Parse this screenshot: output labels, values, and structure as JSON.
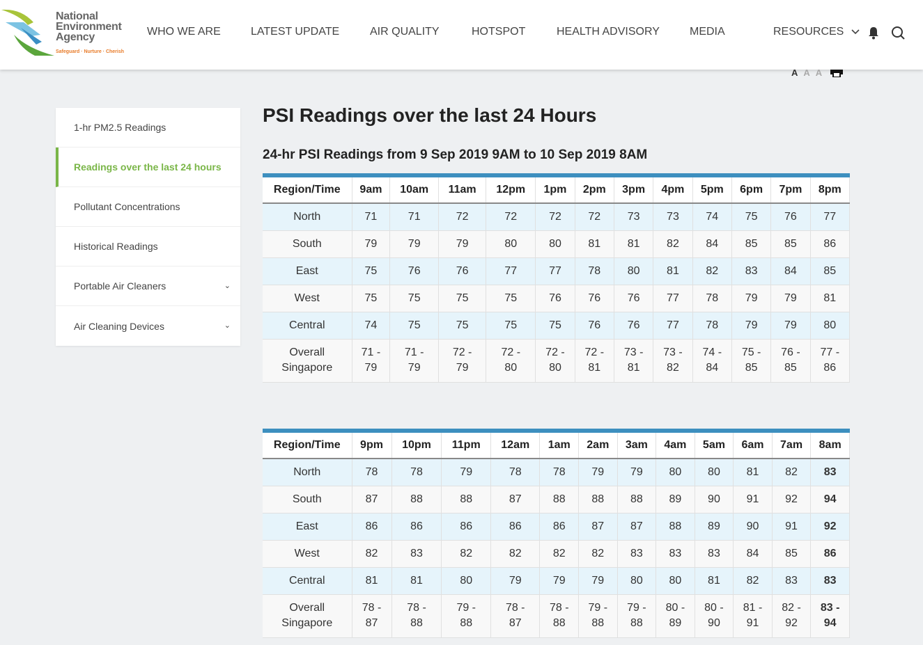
{
  "header": {
    "logo": {
      "line1": "National",
      "line2": "Environment",
      "line3": "Agency",
      "tagline": "Safeguard · Nurture · Cherish"
    },
    "nav": [
      "WHO WE ARE",
      "LATEST UPDATE",
      "AIR QUALITY",
      "HOTSPOT",
      "HEALTH ADVISORY",
      "MEDIA",
      "RESOURCES"
    ],
    "icons": [
      "bell-icon",
      "search-icon"
    ],
    "font_size_options": [
      "A",
      "A",
      "A"
    ]
  },
  "sidebar": {
    "items": [
      {
        "label": "1-hr PM2.5 Readings",
        "active": false
      },
      {
        "label": "Readings over the last 24 hours",
        "active": true
      },
      {
        "label": "Pollutant Concentrations",
        "active": false
      },
      {
        "label": "Historical Readings",
        "active": false
      },
      {
        "label": "Portable Air Cleaners",
        "active": false,
        "expandable": true
      },
      {
        "label": "Air Cleaning Devices",
        "active": false,
        "expandable": true
      }
    ]
  },
  "colors": {
    "accent_green": "#7ab648",
    "table_bar": "#3d8fbf",
    "row_highlight": "#e6f4fb"
  },
  "main": {
    "title": "PSI Readings over the last 24 Hours",
    "subtitle": "24-hr PSI Readings from 9 Sep 2019 9AM to 10 Sep 2019 8AM",
    "tables": [
      {
        "header": [
          "Region/Time",
          "9am",
          "10am",
          "11am",
          "12pm",
          "1pm",
          "2pm",
          "3pm",
          "4pm",
          "5pm",
          "6pm",
          "7pm",
          "8pm"
        ],
        "rows": [
          [
            "North",
            "71",
            "71",
            "72",
            "72",
            "72",
            "72",
            "73",
            "73",
            "74",
            "75",
            "76",
            "77"
          ],
          [
            "South",
            "79",
            "79",
            "79",
            "80",
            "80",
            "81",
            "81",
            "82",
            "84",
            "85",
            "85",
            "86"
          ],
          [
            "East",
            "75",
            "76",
            "76",
            "77",
            "77",
            "78",
            "80",
            "81",
            "82",
            "83",
            "84",
            "85"
          ],
          [
            "West",
            "75",
            "75",
            "75",
            "75",
            "76",
            "76",
            "76",
            "77",
            "78",
            "79",
            "79",
            "81"
          ],
          [
            "Central",
            "74",
            "75",
            "75",
            "75",
            "75",
            "76",
            "76",
            "77",
            "78",
            "79",
            "79",
            "80"
          ],
          [
            "Overall Singapore",
            "71 - 79",
            "71 - 79",
            "72 - 79",
            "72 - 80",
            "72 - 80",
            "72 - 81",
            "73 - 81",
            "73 - 82",
            "74 - 84",
            "75 - 85",
            "76 - 85",
            "77 - 86"
          ]
        ],
        "bold_last_column": false
      },
      {
        "header": [
          "Region/Time",
          "9pm",
          "10pm",
          "11pm",
          "12am",
          "1am",
          "2am",
          "3am",
          "4am",
          "5am",
          "6am",
          "7am",
          "8am"
        ],
        "rows": [
          [
            "North",
            "78",
            "78",
            "79",
            "78",
            "78",
            "79",
            "79",
            "80",
            "80",
            "81",
            "82",
            "83"
          ],
          [
            "South",
            "87",
            "88",
            "88",
            "87",
            "88",
            "88",
            "88",
            "89",
            "90",
            "91",
            "92",
            "94"
          ],
          [
            "East",
            "86",
            "86",
            "86",
            "86",
            "86",
            "87",
            "87",
            "88",
            "89",
            "90",
            "91",
            "92"
          ],
          [
            "West",
            "82",
            "83",
            "82",
            "82",
            "82",
            "82",
            "83",
            "83",
            "83",
            "84",
            "85",
            "86"
          ],
          [
            "Central",
            "81",
            "81",
            "80",
            "79",
            "79",
            "79",
            "80",
            "80",
            "81",
            "82",
            "83",
            "83"
          ],
          [
            "Overall Singapore",
            "78 - 87",
            "78 - 88",
            "79 - 88",
            "78 - 87",
            "78 - 88",
            "79 - 88",
            "79 - 88",
            "80 - 89",
            "80 - 90",
            "81 - 91",
            "82 - 92",
            "83 - 94"
          ]
        ],
        "bold_last_column": true
      }
    ]
  }
}
